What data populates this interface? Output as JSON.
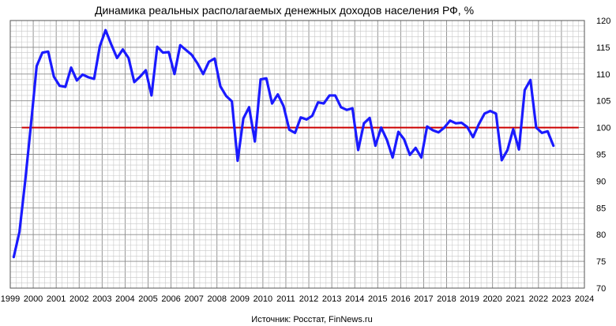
{
  "chart_data": {
    "type": "line",
    "title": "Динамика реальных располагаемых денежных доходов населения РФ, %",
    "source": "Источник: Росстат, FinNews.ru",
    "xlabel": "",
    "ylabel": "",
    "xlim": [
      1999,
      2024
    ],
    "ylim": [
      70,
      120
    ],
    "x_ticks": [
      "1999",
      "2000",
      "2001",
      "2002",
      "2003",
      "2004",
      "2005",
      "2006",
      "2007",
      "2008",
      "2009",
      "2010",
      "2011",
      "2012",
      "2013",
      "2014",
      "2015",
      "2016",
      "2017",
      "2018",
      "2019",
      "2020",
      "2021",
      "2022",
      "2023",
      "2024"
    ],
    "y_ticks": [
      "70",
      "75",
      "80",
      "85",
      "90",
      "95",
      "100",
      "105",
      "110",
      "115",
      "120"
    ],
    "grid": true,
    "reference_line": {
      "y": 100,
      "color": "#cc0000"
    },
    "series": [
      {
        "color": "#1a1aff",
        "points": [
          [
            1999.15,
            75.8
          ],
          [
            1999.4,
            80.5
          ],
          [
            1999.65,
            90.0
          ],
          [
            1999.9,
            100.5
          ],
          [
            2000.15,
            111.5
          ],
          [
            2000.4,
            114.0
          ],
          [
            2000.65,
            114.2
          ],
          [
            2000.9,
            109.5
          ],
          [
            2001.15,
            107.8
          ],
          [
            2001.4,
            107.6
          ],
          [
            2001.65,
            111.2
          ],
          [
            2001.9,
            108.8
          ],
          [
            2002.15,
            109.9
          ],
          [
            2002.4,
            109.4
          ],
          [
            2002.65,
            109.1
          ],
          [
            2002.9,
            115.2
          ],
          [
            2003.15,
            118.2
          ],
          [
            2003.4,
            115.5
          ],
          [
            2003.65,
            113.0
          ],
          [
            2003.9,
            114.6
          ],
          [
            2004.15,
            113.0
          ],
          [
            2004.4,
            108.5
          ],
          [
            2004.65,
            109.5
          ],
          [
            2004.9,
            110.7
          ],
          [
            2005.15,
            106.0
          ],
          [
            2005.4,
            115.1
          ],
          [
            2005.65,
            114.0
          ],
          [
            2005.9,
            114.1
          ],
          [
            2006.15,
            110.0
          ],
          [
            2006.4,
            115.4
          ],
          [
            2006.65,
            114.5
          ],
          [
            2006.9,
            113.6
          ],
          [
            2007.15,
            112.0
          ],
          [
            2007.4,
            110.0
          ],
          [
            2007.65,
            112.3
          ],
          [
            2007.9,
            112.9
          ],
          [
            2008.15,
            107.7
          ],
          [
            2008.4,
            105.9
          ],
          [
            2008.65,
            104.9
          ],
          [
            2008.9,
            93.8
          ],
          [
            2009.15,
            101.7
          ],
          [
            2009.4,
            103.8
          ],
          [
            2009.65,
            97.4
          ],
          [
            2009.9,
            109.0
          ],
          [
            2010.15,
            109.2
          ],
          [
            2010.4,
            104.5
          ],
          [
            2010.65,
            106.2
          ],
          [
            2010.9,
            104.0
          ],
          [
            2011.15,
            99.6
          ],
          [
            2011.4,
            99.0
          ],
          [
            2011.65,
            101.9
          ],
          [
            2011.9,
            101.5
          ],
          [
            2012.15,
            102.2
          ],
          [
            2012.4,
            104.7
          ],
          [
            2012.65,
            104.5
          ],
          [
            2012.9,
            106.0
          ],
          [
            2013.15,
            106.0
          ],
          [
            2013.4,
            103.8
          ],
          [
            2013.65,
            103.3
          ],
          [
            2013.9,
            103.6
          ],
          [
            2014.15,
            95.8
          ],
          [
            2014.4,
            100.8
          ],
          [
            2014.65,
            101.8
          ],
          [
            2014.9,
            96.6
          ],
          [
            2015.15,
            100.0
          ],
          [
            2015.4,
            97.7
          ],
          [
            2015.65,
            94.4
          ],
          [
            2015.9,
            99.2
          ],
          [
            2016.15,
            97.8
          ],
          [
            2016.4,
            94.9
          ],
          [
            2016.65,
            96.2
          ],
          [
            2016.9,
            94.4
          ],
          [
            2017.15,
            100.2
          ],
          [
            2017.4,
            99.5
          ],
          [
            2017.65,
            99.1
          ],
          [
            2017.9,
            100.0
          ],
          [
            2018.15,
            101.3
          ],
          [
            2018.4,
            100.8
          ],
          [
            2018.65,
            100.9
          ],
          [
            2018.9,
            100.1
          ],
          [
            2019.15,
            98.2
          ],
          [
            2019.4,
            100.6
          ],
          [
            2019.65,
            102.6
          ],
          [
            2019.9,
            103.1
          ],
          [
            2020.15,
            102.6
          ],
          [
            2020.4,
            93.9
          ],
          [
            2020.65,
            95.8
          ],
          [
            2020.9,
            99.7
          ],
          [
            2021.15,
            95.9
          ],
          [
            2021.4,
            107.0
          ],
          [
            2021.65,
            108.9
          ],
          [
            2021.9,
            100.0
          ],
          [
            2022.15,
            99.0
          ],
          [
            2022.4,
            99.3
          ],
          [
            2022.65,
            96.6
          ]
        ]
      }
    ]
  }
}
